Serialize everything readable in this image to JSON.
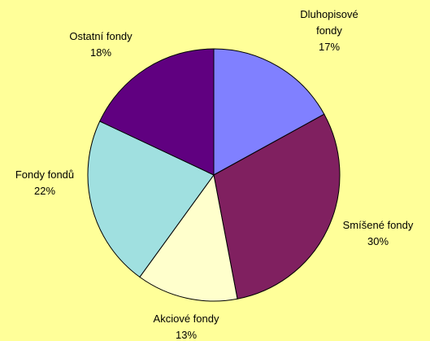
{
  "chart_data": {
    "type": "pie",
    "categories": [
      "Dluhopisové fondy",
      "Smíšené fondy",
      "Akciové fondy",
      "Fondy fondů",
      "Ostatní fondy"
    ],
    "values": [
      17,
      30,
      13,
      22,
      18
    ],
    "value_labels": [
      "17%",
      "30%",
      "13%",
      "22%",
      "18%"
    ],
    "colors": [
      "#8080ff",
      "#802060",
      "#ffffcc",
      "#a0e0e0",
      "#600080"
    ]
  }
}
